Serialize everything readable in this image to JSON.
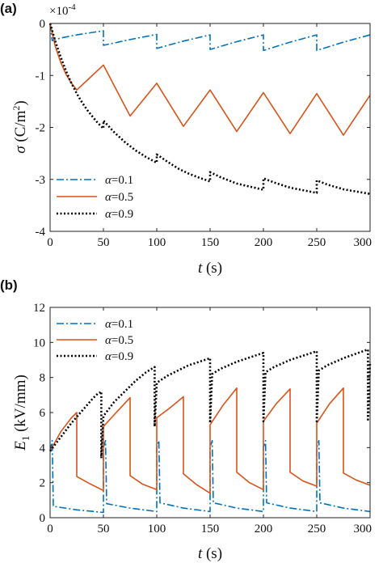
{
  "panels": [
    {
      "panel_label": "(a)",
      "ylabel_symbol": "σ",
      "ylabel_unit": " (C/m",
      "ylabel_unit_sup": "2",
      "ylabel_unit_close": ")",
      "xlabel_symbol": "t",
      "xlabel_unit": " (s)",
      "scale_base": "×10",
      "scale_exp": "-4",
      "legend": [
        {
          "symbol": "α",
          "text": "=0.1"
        },
        {
          "symbol": "α",
          "text": "=0.5"
        },
        {
          "symbol": "α",
          "text": "=0.9"
        }
      ]
    },
    {
      "panel_label": "(b)",
      "ylabel_symbol": "E",
      "ylabel_sub": "1",
      "ylabel_unit": " (kV/mm)",
      "xlabel_symbol": "t",
      "xlabel_unit": " (s)",
      "legend": [
        {
          "symbol": "α",
          "text": "=0.1"
        },
        {
          "symbol": "α",
          "text": "=0.5"
        },
        {
          "symbol": "α",
          "text": "=0.9"
        }
      ]
    }
  ],
  "chart_data": [
    {
      "type": "line",
      "panel": "(a)",
      "xlabel": "t (s)",
      "ylabel": "σ (C/m2)",
      "y_multiplier": "×10^-4",
      "xlim": [
        0,
        300
      ],
      "ylim": [
        -4,
        0
      ],
      "xticks": [
        0,
        50,
        100,
        150,
        200,
        250,
        300
      ],
      "xtick_labels": [
        "0",
        "50",
        "100",
        "150",
        "200",
        "250",
        "300"
      ],
      "yticks": [
        -4,
        -3,
        -2,
        -1,
        0
      ],
      "ytick_labels": [
        "-4",
        "-3",
        "-2",
        "-1",
        "0"
      ],
      "legend_position": "bottom-left",
      "grid": false,
      "series": [
        {
          "name": "α=0.1",
          "color": "#0072BD",
          "style": "dashdot",
          "x": [
            0,
            2,
            10,
            25,
            50,
            50.01,
            75,
            100,
            100.01,
            125,
            150,
            150.01,
            175,
            200,
            200.01,
            225,
            250,
            250.01,
            275,
            300
          ],
          "y": [
            0,
            -0.33,
            -0.28,
            -0.22,
            -0.14,
            -0.42,
            -0.31,
            -0.21,
            -0.48,
            -0.34,
            -0.22,
            -0.5,
            -0.35,
            -0.22,
            -0.52,
            -0.36,
            -0.22,
            -0.52,
            -0.36,
            -0.22
          ]
        },
        {
          "name": "α=0.5",
          "color": "#D95319",
          "style": "solid",
          "x": [
            0,
            5,
            10,
            15,
            20,
            25,
            37,
            50,
            75,
            100,
            125,
            150,
            175,
            200,
            225,
            250,
            275,
            300
          ],
          "y": [
            0,
            -0.45,
            -0.75,
            -0.98,
            -1.15,
            -1.28,
            -1.05,
            -0.8,
            -1.78,
            -1.15,
            -1.98,
            -1.28,
            -2.08,
            -1.33,
            -2.12,
            -1.35,
            -2.15,
            -1.38
          ]
        },
        {
          "name": "α=0.9",
          "color": "#000000",
          "style": "dotted",
          "x": [
            0,
            5,
            10,
            15,
            20,
            25,
            30,
            35,
            40,
            45,
            50,
            50.01,
            60,
            70,
            80,
            90,
            100,
            100.01,
            110,
            120,
            130,
            140,
            150,
            150.01,
            160,
            175,
            200,
            200.01,
            210,
            225,
            250,
            250.01,
            260,
            275,
            300
          ],
          "y": [
            0,
            -0.35,
            -0.65,
            -0.92,
            -1.15,
            -1.35,
            -1.52,
            -1.67,
            -1.8,
            -1.92,
            -2.02,
            -1.87,
            -2.09,
            -2.28,
            -2.44,
            -2.57,
            -2.68,
            -2.52,
            -2.66,
            -2.79,
            -2.89,
            -2.97,
            -3.04,
            -2.86,
            -2.96,
            -3.08,
            -3.2,
            -2.98,
            -3.06,
            -3.16,
            -3.26,
            -3.02,
            -3.1,
            -3.19,
            -3.28
          ]
        }
      ]
    },
    {
      "type": "line",
      "panel": "(b)",
      "xlabel": "t (s)",
      "ylabel": "E1 (kV/mm)",
      "xlim": [
        0,
        300
      ],
      "ylim": [
        0,
        12
      ],
      "xticks": [
        0,
        50,
        100,
        150,
        200,
        250,
        300
      ],
      "xtick_labels": [
        "0",
        "50",
        "100",
        "150",
        "200",
        "250",
        "300"
      ],
      "yticks": [
        0,
        2,
        4,
        6,
        8,
        10,
        12
      ],
      "ytick_labels": [
        "0",
        "2",
        "4",
        "6",
        "8",
        "10",
        "12"
      ],
      "legend_position": "top-left",
      "grid": false,
      "series": [
        {
          "name": "α=0.1",
          "color": "#0072BD",
          "style": "dashdot",
          "x": [
            0,
            2,
            3,
            25,
            50,
            50.01,
            52,
            53,
            75,
            100,
            100.01,
            102,
            103,
            125,
            150,
            150.01,
            152,
            153,
            175,
            200,
            200.01,
            202,
            203,
            225,
            250,
            250.01,
            252,
            253,
            275,
            300
          ],
          "y": [
            3.8,
            4.4,
            0.65,
            0.45,
            0.3,
            4.0,
            4.4,
            0.8,
            0.55,
            0.35,
            4.0,
            4.4,
            0.85,
            0.55,
            0.35,
            4.0,
            4.4,
            0.85,
            0.55,
            0.35,
            4.0,
            4.4,
            0.85,
            0.55,
            0.35,
            4.0,
            4.4,
            0.85,
            0.55,
            0.35
          ]
        },
        {
          "name": "α=0.5",
          "color": "#D95319",
          "style": "solid",
          "x": [
            0,
            10,
            20,
            25,
            25.01,
            37,
            50,
            50.01,
            62,
            75,
            75.01,
            87,
            100,
            100.01,
            112,
            125,
            125.01,
            137,
            150,
            150.01,
            162,
            175,
            175.01,
            187,
            200,
            200.01,
            212,
            225,
            225.01,
            237,
            250,
            250.01,
            262,
            275,
            275.01,
            287,
            300
          ],
          "y": [
            3.8,
            4.9,
            5.7,
            6.0,
            2.35,
            1.95,
            1.55,
            5.2,
            6.0,
            6.85,
            2.4,
            1.9,
            1.6,
            5.7,
            6.25,
            6.9,
            2.5,
            1.9,
            1.4,
            5.3,
            6.4,
            7.4,
            2.6,
            2.0,
            1.6,
            5.5,
            6.5,
            7.35,
            2.6,
            2.1,
            1.8,
            5.4,
            6.5,
            7.4,
            2.55,
            2.15,
            1.85
          ]
        },
        {
          "name": "α=0.9",
          "color": "#000000",
          "style": "dotted",
          "x": [
            0,
            10,
            20,
            30,
            40,
            45,
            47,
            48,
            48.01,
            50,
            60,
            70,
            80,
            90,
            98,
            98.01,
            100,
            110,
            120,
            130,
            140,
            150,
            150.01,
            152,
            160,
            175,
            200,
            200.01,
            202,
            210,
            225,
            250,
            250.01,
            252,
            260,
            275,
            298,
            298.01,
            300
          ],
          "y": [
            3.8,
            4.6,
            5.4,
            6.1,
            6.8,
            7.1,
            7.15,
            7.2,
            3.4,
            5.8,
            6.6,
            7.2,
            7.8,
            8.3,
            8.6,
            5.2,
            7.7,
            8.1,
            8.4,
            8.7,
            8.9,
            9.1,
            5.4,
            8.2,
            8.5,
            8.9,
            9.4,
            5.5,
            8.3,
            8.6,
            9.0,
            9.5,
            5.5,
            8.4,
            8.7,
            9.1,
            9.6,
            5.6,
            8.9
          ]
        }
      ]
    }
  ]
}
